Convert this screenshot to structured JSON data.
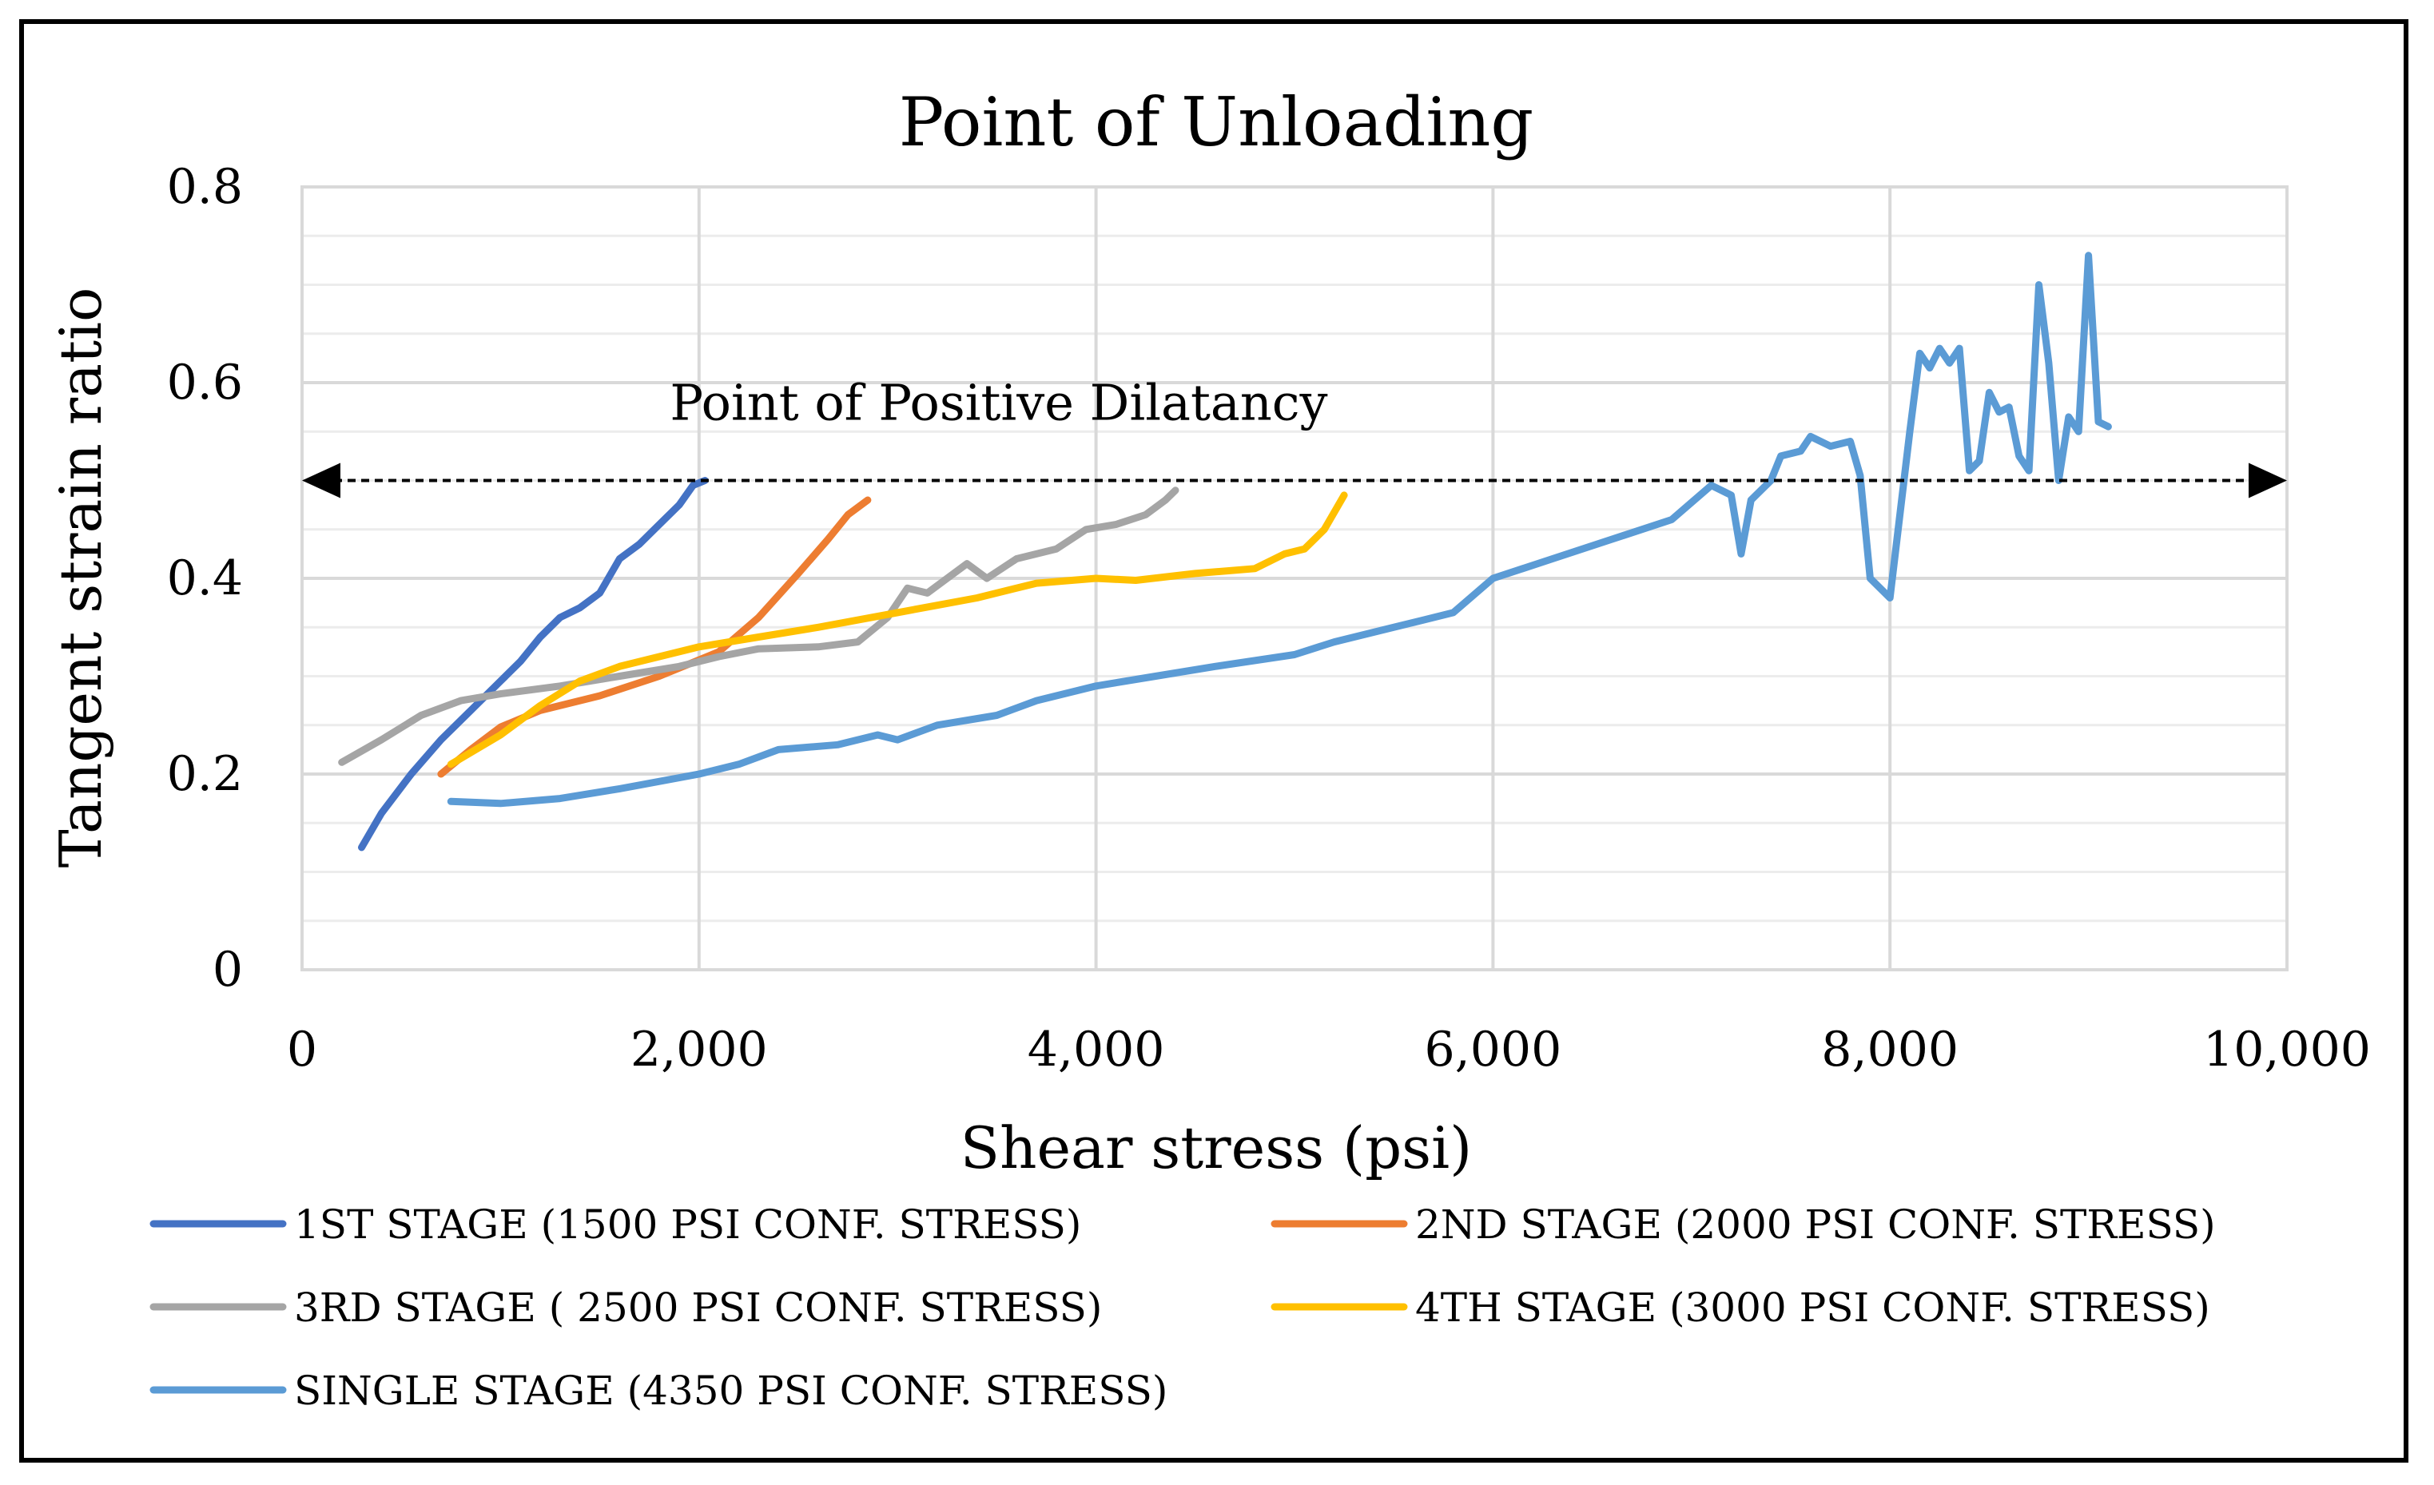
{
  "chart_data": {
    "type": "line",
    "title": "Point of Unloading",
    "xlabel": "Shear stress (psi)",
    "ylabel": "Tangent strain ratio",
    "xlim": [
      0,
      10000
    ],
    "ylim": [
      0,
      0.8
    ],
    "x_ticks": [
      "0",
      "2,000",
      "4,000",
      "6,000",
      "8,000",
      "10,000"
    ],
    "y_ticks": [
      "0",
      "0.2",
      "0.4",
      "0.6",
      "0.8"
    ],
    "grid": true,
    "annotation": {
      "text": "Point of Positive Dilatancy",
      "y": 0.5,
      "style": "dashed double-headed arrow"
    },
    "legend_position": "bottom",
    "series": [
      {
        "name": "1ST STAGE (1500 PSI CONF. STRESS)",
        "color": "#4472C4",
        "points": [
          [
            300,
            0.125
          ],
          [
            400,
            0.16
          ],
          [
            550,
            0.2
          ],
          [
            700,
            0.235
          ],
          [
            850,
            0.265
          ],
          [
            1000,
            0.295
          ],
          [
            1100,
            0.315
          ],
          [
            1200,
            0.34
          ],
          [
            1300,
            0.36
          ],
          [
            1400,
            0.37
          ],
          [
            1500,
            0.385
          ],
          [
            1600,
            0.42
          ],
          [
            1700,
            0.435
          ],
          [
            1800,
            0.455
          ],
          [
            1900,
            0.475
          ],
          [
            1970,
            0.495
          ],
          [
            2030,
            0.5
          ]
        ]
      },
      {
        "name": "2ND STAGE (2000 PSI CONF. STRESS)",
        "color": "#ED7D31",
        "points": [
          [
            700,
            0.2
          ],
          [
            850,
            0.225
          ],
          [
            1000,
            0.248
          ],
          [
            1200,
            0.265
          ],
          [
            1500,
            0.28
          ],
          [
            1800,
            0.3
          ],
          [
            2100,
            0.325
          ],
          [
            2300,
            0.36
          ],
          [
            2500,
            0.405
          ],
          [
            2650,
            0.44
          ],
          [
            2750,
            0.465
          ],
          [
            2850,
            0.48
          ]
        ]
      },
      {
        "name": "3RD STAGE ( 2500 PSI CONF. STRESS)",
        "color": "#A5A5A5",
        "points": [
          [
            200,
            0.212
          ],
          [
            400,
            0.235
          ],
          [
            600,
            0.26
          ],
          [
            800,
            0.275
          ],
          [
            1000,
            0.282
          ],
          [
            1300,
            0.29
          ],
          [
            1600,
            0.3
          ],
          [
            1900,
            0.31
          ],
          [
            2100,
            0.32
          ],
          [
            2300,
            0.328
          ],
          [
            2600,
            0.33
          ],
          [
            2800,
            0.335
          ],
          [
            2950,
            0.36
          ],
          [
            3050,
            0.39
          ],
          [
            3150,
            0.385
          ],
          [
            3250,
            0.4
          ],
          [
            3350,
            0.415
          ],
          [
            3450,
            0.4
          ],
          [
            3600,
            0.42
          ],
          [
            3800,
            0.43
          ],
          [
            3950,
            0.45
          ],
          [
            4100,
            0.455
          ],
          [
            4250,
            0.465
          ],
          [
            4350,
            0.48
          ],
          [
            4400,
            0.49
          ]
        ]
      },
      {
        "name": "4TH STAGE (3000 PSI CONF. STRESS)",
        "color": "#FFC000",
        "points": [
          [
            750,
            0.21
          ],
          [
            1000,
            0.24
          ],
          [
            1200,
            0.27
          ],
          [
            1400,
            0.295
          ],
          [
            1600,
            0.31
          ],
          [
            1800,
            0.32
          ],
          [
            2000,
            0.33
          ],
          [
            2300,
            0.34
          ],
          [
            2600,
            0.35
          ],
          [
            3000,
            0.365
          ],
          [
            3400,
            0.38
          ],
          [
            3700,
            0.395
          ],
          [
            4000,
            0.4
          ],
          [
            4200,
            0.398
          ],
          [
            4500,
            0.405
          ],
          [
            4800,
            0.41
          ],
          [
            4950,
            0.425
          ],
          [
            5050,
            0.43
          ],
          [
            5150,
            0.45
          ],
          [
            5250,
            0.485
          ]
        ]
      },
      {
        "name": "SINGLE STAGE (4350 PSI CONF. STRESS)",
        "color": "#5B9BD5",
        "points": [
          [
            750,
            0.172
          ],
          [
            1000,
            0.17
          ],
          [
            1300,
            0.175
          ],
          [
            1600,
            0.185
          ],
          [
            2000,
            0.2
          ],
          [
            2200,
            0.21
          ],
          [
            2400,
            0.225
          ],
          [
            2700,
            0.23
          ],
          [
            2900,
            0.24
          ],
          [
            3000,
            0.235
          ],
          [
            3200,
            0.25
          ],
          [
            3500,
            0.26
          ],
          [
            3700,
            0.275
          ],
          [
            4000,
            0.29
          ],
          [
            4300,
            0.3
          ],
          [
            4600,
            0.31
          ],
          [
            5000,
            0.322
          ],
          [
            5200,
            0.335
          ],
          [
            5500,
            0.35
          ],
          [
            5800,
            0.365
          ],
          [
            6000,
            0.4
          ],
          [
            6300,
            0.42
          ],
          [
            6600,
            0.44
          ],
          [
            6900,
            0.46
          ],
          [
            7100,
            0.495
          ],
          [
            7200,
            0.485
          ],
          [
            7250,
            0.425
          ],
          [
            7300,
            0.48
          ],
          [
            7400,
            0.5
          ],
          [
            7450,
            0.525
          ],
          [
            7550,
            0.53
          ],
          [
            7600,
            0.545
          ],
          [
            7700,
            0.535
          ],
          [
            7800,
            0.54
          ],
          [
            7850,
            0.505
          ],
          [
            7900,
            0.4
          ],
          [
            8000,
            0.38
          ],
          [
            8100,
            0.55
          ],
          [
            8150,
            0.63
          ],
          [
            8200,
            0.615
          ],
          [
            8250,
            0.635
          ],
          [
            8300,
            0.62
          ],
          [
            8350,
            0.635
          ],
          [
            8400,
            0.51
          ],
          [
            8450,
            0.52
          ],
          [
            8500,
            0.59
          ],
          [
            8550,
            0.57
          ],
          [
            8600,
            0.575
          ],
          [
            8650,
            0.525
          ],
          [
            8700,
            0.51
          ],
          [
            8750,
            0.7
          ],
          [
            8800,
            0.62
          ],
          [
            8850,
            0.5
          ],
          [
            8900,
            0.565
          ],
          [
            8950,
            0.55
          ],
          [
            9000,
            0.73
          ],
          [
            9050,
            0.56
          ],
          [
            9100,
            0.555
          ]
        ]
      }
    ]
  }
}
